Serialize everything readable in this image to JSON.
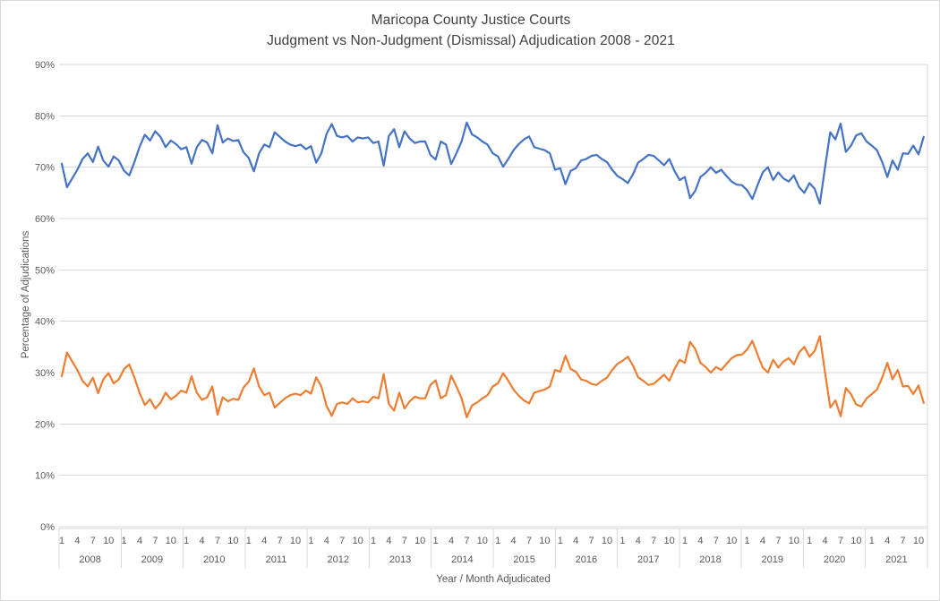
{
  "title": {
    "line1": "Maricopa County Justice Courts",
    "line2": "Judgment vs Non-Judgment (Dismissal) Adjudication 2008 - 2021"
  },
  "colors": {
    "judgment_line": "#4472C4",
    "dismissal_line": "#ED7D31",
    "gridline": "#D9D9D9",
    "axis_line": "#D9D9D9",
    "axis_text": "#595959",
    "title_text": "#404040",
    "chart_border": "#D9D9D9",
    "background": "#FFFFFF"
  },
  "chart_data": {
    "type": "line",
    "title": "Maricopa County Justice Courts — Judgment vs Non-Judgment (Dismissal) Adjudication 2008 - 2021",
    "xlabel": "Year / Month Adjudicated",
    "ylabel": "Percentage of Adjudications",
    "ylim": [
      0,
      90
    ],
    "ytick_step": 10,
    "ytick_labels": [
      "0%",
      "10%",
      "20%",
      "30%",
      "40%",
      "50%",
      "60%",
      "70%",
      "80%",
      "90%"
    ],
    "grid": true,
    "legend_position": "none",
    "x_start": "2008-01",
    "x_end": "2021-11",
    "years": [
      2008,
      2009,
      2010,
      2011,
      2012,
      2013,
      2014,
      2015,
      2016,
      2017,
      2018,
      2019,
      2020,
      2021
    ],
    "month_ticks": [
      1,
      4,
      7,
      10
    ],
    "series": [
      {
        "name": "Judgment",
        "color": "#4472C4",
        "values": [
          70.7,
          66.1,
          67.8,
          69.5,
          71.6,
          72.7,
          71.0,
          74.0,
          71.3,
          70.1,
          72.1,
          71.3,
          69.3,
          68.4,
          71.0,
          74.0,
          76.3,
          75.2,
          77.0,
          75.9,
          73.9,
          75.2,
          74.5,
          73.5,
          73.9,
          70.7,
          73.9,
          75.3,
          74.8,
          72.7,
          78.2,
          74.8,
          75.6,
          75.1,
          75.3,
          72.9,
          71.8,
          69.2,
          72.7,
          74.4,
          73.9,
          76.8,
          75.9,
          75.0,
          74.4,
          74.1,
          74.4,
          73.5,
          74.1,
          70.9,
          72.7,
          76.5,
          78.4,
          76.1,
          75.8,
          76.1,
          75.0,
          75.8,
          75.6,
          75.8,
          74.7,
          75.0,
          70.3,
          76.1,
          77.4,
          73.9,
          77.0,
          75.6,
          74.7,
          75.0,
          75.0,
          72.4,
          71.5,
          75.0,
          74.4,
          70.6,
          72.7,
          75.0,
          78.7,
          76.4,
          75.8,
          75.0,
          74.4,
          72.7,
          72.1,
          70.1,
          71.6,
          73.3,
          74.5,
          75.4,
          76.0,
          73.9,
          73.6,
          73.3,
          72.7,
          69.5,
          69.8,
          66.7,
          69.3,
          69.8,
          71.3,
          71.6,
          72.2,
          72.4,
          71.6,
          71.0,
          69.5,
          68.3,
          67.7,
          66.9,
          68.6,
          70.9,
          71.6,
          72.4,
          72.2,
          71.3,
          70.4,
          71.6,
          69.3,
          67.5,
          68.1,
          64.0,
          65.4,
          68.1,
          68.9,
          70.0,
          68.9,
          69.5,
          68.3,
          67.2,
          66.6,
          66.5,
          65.5,
          63.8,
          66.5,
          69.0,
          70.0,
          67.5,
          69.0,
          67.8,
          67.2,
          68.4,
          66.1,
          65.0,
          66.9,
          65.8,
          62.9,
          70.0,
          76.8,
          75.4,
          78.5,
          73.0,
          74.2,
          76.2,
          76.6,
          75.0,
          74.2,
          73.3,
          71.0,
          68.1,
          71.3,
          69.5,
          72.7,
          72.6,
          74.2,
          72.5,
          75.9
        ]
      },
      {
        "name": "Non-Judgment (Dismissal)",
        "color": "#ED7D31",
        "values": [
          29.3,
          33.9,
          32.2,
          30.5,
          28.4,
          27.3,
          29.0,
          26.0,
          28.7,
          29.9,
          27.9,
          28.7,
          30.7,
          31.6,
          29.0,
          26.0,
          23.7,
          24.8,
          23.0,
          24.1,
          26.1,
          24.8,
          25.5,
          26.5,
          26.1,
          29.3,
          26.1,
          24.7,
          25.2,
          27.3,
          21.8,
          25.2,
          24.4,
          24.9,
          24.7,
          27.1,
          28.2,
          30.8,
          27.3,
          25.6,
          26.1,
          23.2,
          24.1,
          25.0,
          25.6,
          25.9,
          25.6,
          26.5,
          25.9,
          29.1,
          27.3,
          23.5,
          21.6,
          23.9,
          24.2,
          23.9,
          25.0,
          24.2,
          24.4,
          24.2,
          25.3,
          25.0,
          29.7,
          23.9,
          22.6,
          26.1,
          23.0,
          24.4,
          25.3,
          25.0,
          25.0,
          27.6,
          28.5,
          25.0,
          25.6,
          29.4,
          27.3,
          25.0,
          21.3,
          23.6,
          24.2,
          25.0,
          25.6,
          27.3,
          27.9,
          29.9,
          28.4,
          26.7,
          25.5,
          24.6,
          24.0,
          26.1,
          26.4,
          26.7,
          27.3,
          30.5,
          30.2,
          33.3,
          30.7,
          30.2,
          28.7,
          28.4,
          27.8,
          27.6,
          28.4,
          29.0,
          30.5,
          31.7,
          32.3,
          33.1,
          31.4,
          29.1,
          28.4,
          27.6,
          27.8,
          28.7,
          29.6,
          28.4,
          30.7,
          32.5,
          31.9,
          36.0,
          34.6,
          31.9,
          31.1,
          30.0,
          31.1,
          30.5,
          31.7,
          32.8,
          33.4,
          33.5,
          34.5,
          36.2,
          33.5,
          31.0,
          30.0,
          32.5,
          31.0,
          32.2,
          32.8,
          31.6,
          33.9,
          35.0,
          33.1,
          34.2,
          37.1,
          30.0,
          23.2,
          24.6,
          21.5,
          27.0,
          25.8,
          23.8,
          23.4,
          25.0,
          25.8,
          26.7,
          29.0,
          31.9,
          28.7,
          30.5,
          27.3,
          27.4,
          25.8,
          27.5,
          24.1
        ]
      }
    ]
  }
}
